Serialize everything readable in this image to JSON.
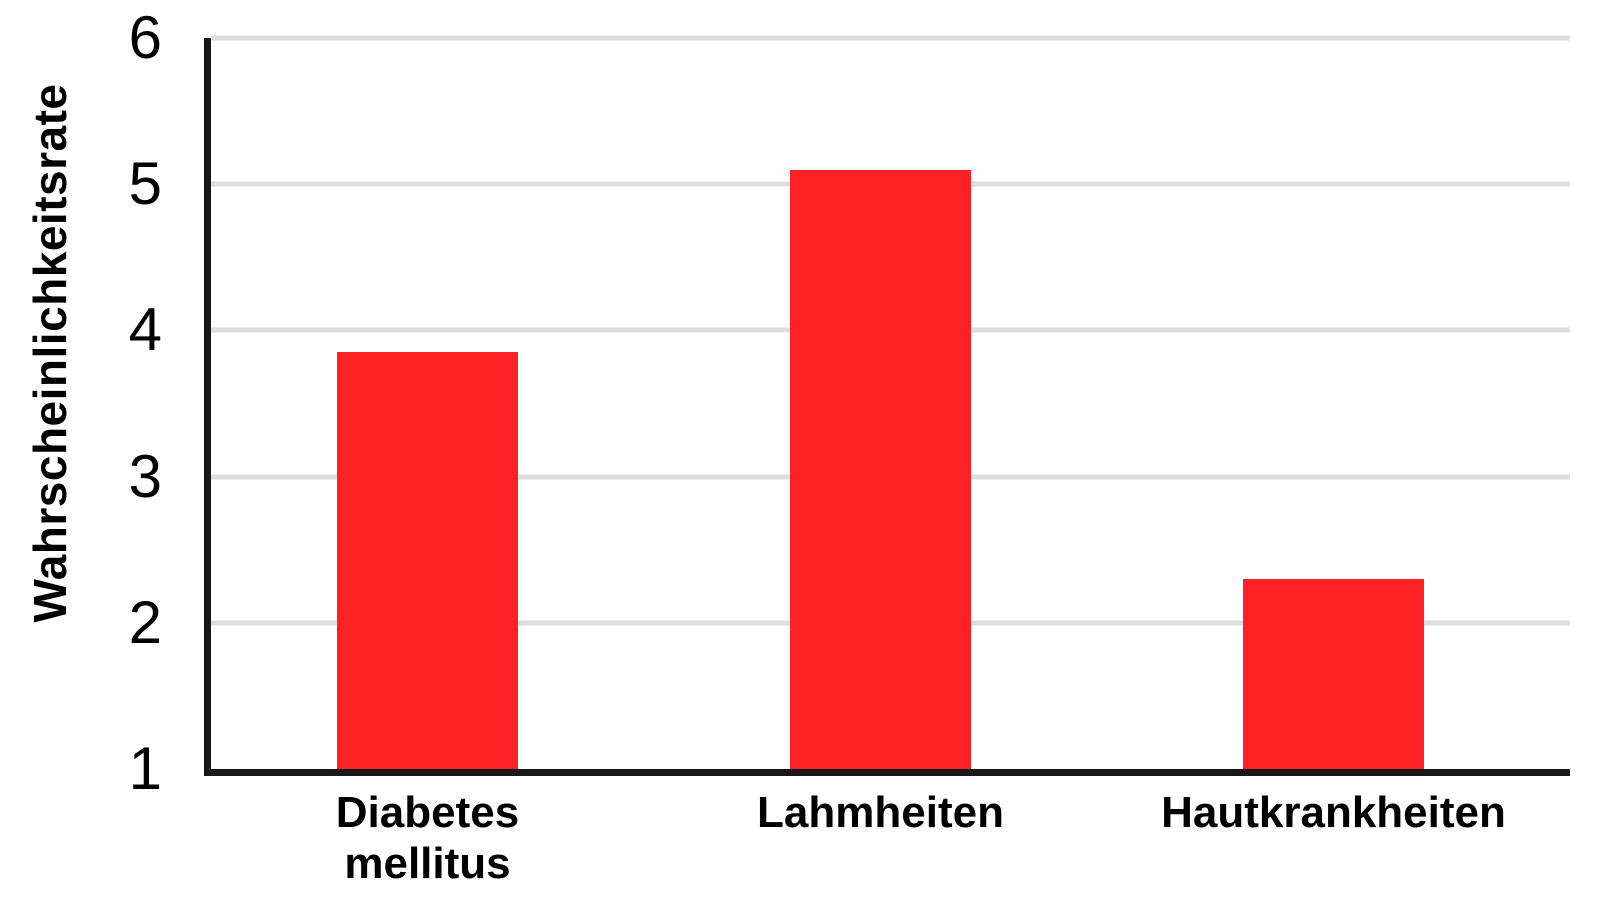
{
  "chart_data": {
    "type": "bar",
    "title": "",
    "categories": [
      "Diabetes\nmellitus",
      "Lahmheiten",
      "Hautkrankheiten"
    ],
    "values": [
      3.85,
      5.1,
      2.3
    ],
    "series_name": "Wahrscheinlichkeitsrate",
    "xlabel": "",
    "ylabel": "Wahrscheinlichkeitsrate",
    "ylim": [
      1,
      6
    ],
    "yticks": [
      1,
      2,
      3,
      4,
      5,
      6
    ],
    "gridlines_at": [
      2,
      3,
      4,
      5,
      6
    ],
    "grid": "horizontal",
    "legend": "none",
    "colors": {
      "bar": "#fd2024",
      "gridline": "#dedede",
      "axis": "#1a171b",
      "text": "#000000",
      "background": "#ffffff"
    }
  }
}
